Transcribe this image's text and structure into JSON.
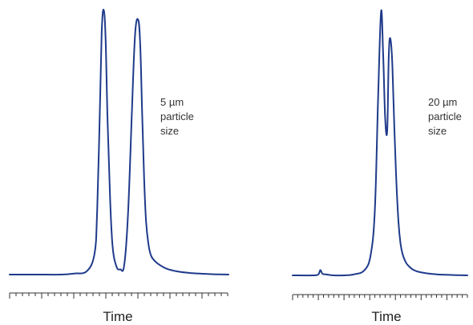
{
  "chart_data": [
    {
      "type": "line",
      "xlabel": "Time",
      "ylabel": "",
      "annotation": [
        "5 µm",
        "particle",
        "size"
      ],
      "line_color": "#1f3a8a",
      "xlim": [
        0,
        17
      ],
      "ylim": [
        0,
        1
      ],
      "minor_ticks": 34,
      "major_tick_every": 5,
      "x": [
        0,
        2,
        4,
        5,
        6,
        6.6,
        6.8,
        7.0,
        7.15,
        7.3,
        7.45,
        7.6,
        7.8,
        8.0,
        8.3,
        8.6,
        8.9,
        9.2,
        9.5,
        9.75,
        10.0,
        10.15,
        10.3,
        10.45,
        10.6,
        10.8,
        11.0,
        11.3,
        11.7,
        12.2,
        13,
        14,
        15,
        16,
        17
      ],
      "series": [
        {
          "values": [
            0.0,
            0.0,
            0.0,
            0.004,
            0.013,
            0.08,
            0.24,
            0.6,
            0.91,
            1.0,
            0.9,
            0.6,
            0.29,
            0.105,
            0.03,
            0.02,
            0.035,
            0.23,
            0.62,
            0.91,
            0.96,
            0.86,
            0.6,
            0.36,
            0.2,
            0.11,
            0.07,
            0.05,
            0.035,
            0.022,
            0.012,
            0.006,
            0.003,
            0.001,
            0.0
          ]
        }
      ]
    },
    {
      "type": "line",
      "xlabel": "Time",
      "ylabel": "",
      "annotation": [
        "20 µm",
        "particle",
        "size"
      ],
      "line_color": "#1f3a8a",
      "xlim": [
        0,
        17
      ],
      "ylim": [
        0,
        1
      ],
      "minor_ticks": 34,
      "major_tick_every": 5,
      "x": [
        0,
        2,
        2.5,
        2.7,
        2.9,
        3.2,
        4,
        5,
        6.0,
        7.0,
        7.6,
        8.0,
        8.3,
        8.6,
        8.8,
        9.0,
        9.2,
        9.35,
        9.5,
        9.7,
        9.9,
        10.1,
        10.3,
        10.5,
        10.7,
        11.0,
        11.3,
        11.7,
        12.2,
        13,
        14,
        15,
        16,
        17
      ],
      "series": [
        {
          "values": [
            0.0,
            0.0,
            0.004,
            0.02,
            0.006,
            0.004,
            0.0,
            0.0,
            0.004,
            0.02,
            0.08,
            0.25,
            0.65,
            1.0,
            0.85,
            0.6,
            0.55,
            0.83,
            0.9,
            0.8,
            0.55,
            0.35,
            0.2,
            0.12,
            0.08,
            0.05,
            0.035,
            0.022,
            0.014,
            0.008,
            0.004,
            0.002,
            0.001,
            0.0
          ]
        }
      ]
    }
  ]
}
